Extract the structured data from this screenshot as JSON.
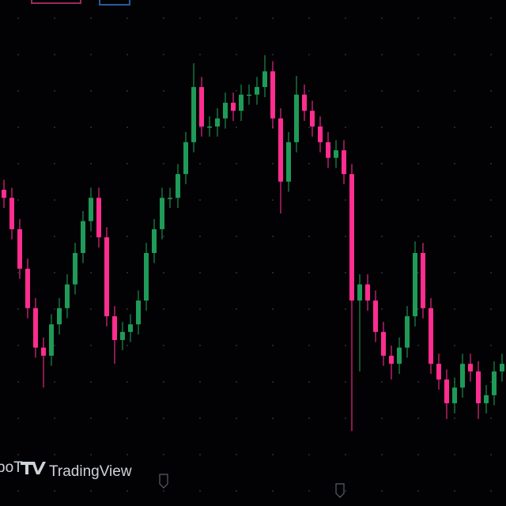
{
  "chart_data": {
    "type": "candlestick",
    "watermark_fragment": "ɒoT",
    "watermark": "TradingView",
    "up_color": "#1f9a58",
    "down_color": "#ff2d8f",
    "ylim": [
      0,
      100
    ],
    "open": [
      62.5,
      60.9,
      54.7,
      46.9,
      39.1,
      31.3,
      29.7,
      35.9,
      39.1,
      43.8,
      50,
      56.3,
      60.9,
      53.1,
      37.5,
      32.8,
      34.4,
      35.9,
      40.6,
      50,
      54.7,
      60.9,
      60.9,
      65.6,
      71.9,
      82.8,
      75,
      75,
      76.6,
      79.7,
      78.1,
      81.3,
      81.3,
      82.8,
      85.9,
      76.6,
      64.1,
      71.9,
      81.3,
      78.1,
      75,
      71.9,
      68.8,
      70.3,
      65.6,
      40.6,
      43.8,
      40.6,
      34.4,
      29.7,
      28.1,
      31.3,
      37.5,
      50,
      39.1,
      28.1,
      25,
      20.3,
      23.4,
      28.1,
      26.6,
      20.3,
      21.9,
      26.6
    ],
    "high": [
      64.5,
      62.9,
      56.7,
      48.9,
      41.1,
      33.3,
      37.9,
      41.1,
      45.8,
      52,
      58.3,
      62.9,
      62.9,
      55.1,
      39.5,
      36.4,
      37.9,
      42.6,
      52,
      56.7,
      62.9,
      62.9,
      67.6,
      73.9,
      87.5,
      84.8,
      77,
      78.6,
      81.7,
      81.7,
      83.3,
      83.3,
      84.8,
      89.1,
      87.9,
      78.6,
      73.9,
      85,
      83.3,
      80.1,
      77,
      73.9,
      72.3,
      72.3,
      67.6,
      45.8,
      45.8,
      42.6,
      36.4,
      31.7,
      33.3,
      39.5,
      52.3,
      52,
      41.1,
      30.1,
      27,
      25.4,
      30.1,
      30.1,
      28.6,
      23.9,
      28.6,
      30.1
    ],
    "low": [
      58.9,
      52.7,
      44.9,
      37.1,
      29.3,
      23.4,
      27.7,
      33.9,
      37.1,
      41.8,
      48,
      54.3,
      51.1,
      35.5,
      28.1,
      30.8,
      32.4,
      33.9,
      38.6,
      48,
      52.7,
      58.9,
      58.9,
      63.6,
      69.9,
      73,
      73,
      73,
      74.6,
      76.1,
      76.1,
      79.3,
      79.3,
      80.8,
      74.6,
      57.8,
      62.1,
      69.9,
      76.1,
      73,
      69.9,
      66.8,
      66.8,
      63.6,
      14.8,
      26.6,
      38.6,
      32.4,
      27.7,
      25,
      26.1,
      29.3,
      35.5,
      37.1,
      26.1,
      23,
      17.2,
      18.3,
      21.4,
      24.6,
      17.2,
      18.3,
      19.9,
      24.6
    ],
    "close": [
      60.9,
      54.7,
      46.9,
      39.1,
      31.3,
      29.7,
      35.9,
      39.1,
      43.8,
      50,
      56.3,
      60.9,
      53.1,
      37.5,
      32.8,
      34.4,
      35.9,
      40.6,
      50,
      54.7,
      60.9,
      60.9,
      65.6,
      71.9,
      82.8,
      75,
      75,
      76.6,
      79.7,
      78.1,
      81.3,
      81.3,
      82.8,
      85.9,
      76.6,
      64.1,
      71.9,
      81.3,
      78.1,
      75,
      71.9,
      68.8,
      70.3,
      65.6,
      40.6,
      43.8,
      40.6,
      34.4,
      29.7,
      28.1,
      31.3,
      37.5,
      50,
      39.1,
      28.1,
      25,
      20.3,
      23.4,
      28.1,
      26.6,
      20.3,
      21.9,
      26.6,
      28.1
    ]
  }
}
